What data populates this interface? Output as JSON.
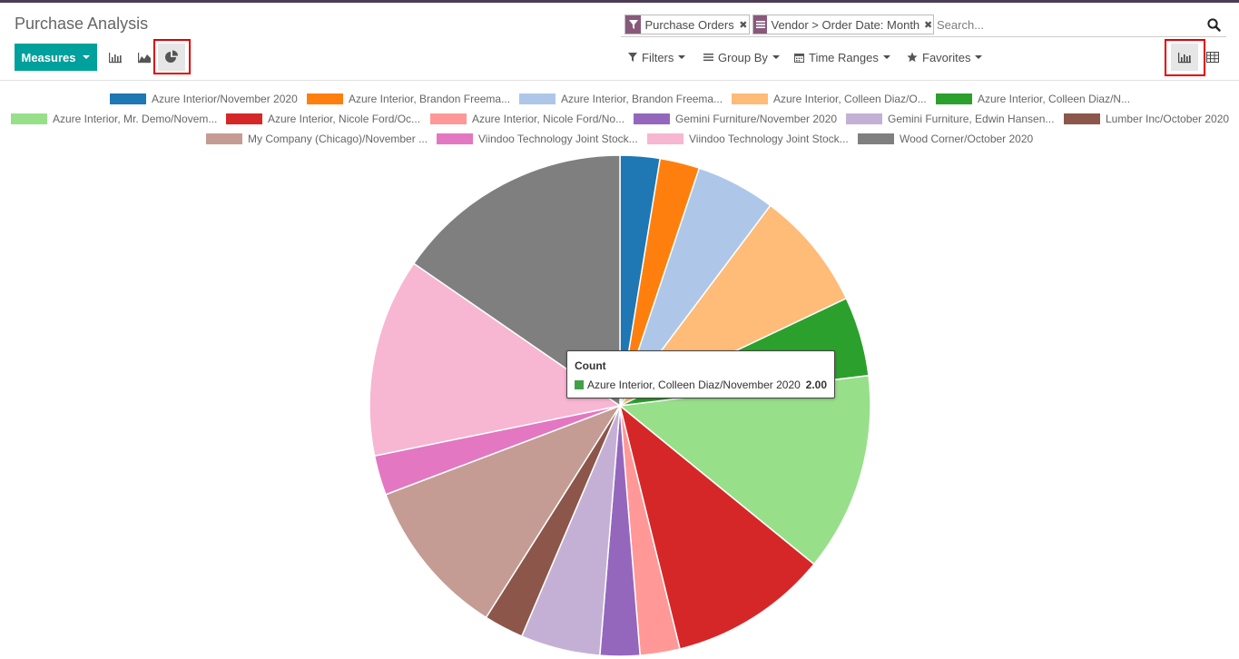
{
  "header": {
    "title": "Purchase Analysis"
  },
  "toolbar": {
    "measures_label": "Measures",
    "graph_modes": [
      "bar-chart-icon",
      "line-chart-icon",
      "pie-chart-icon"
    ],
    "active_mode": "pie"
  },
  "search": {
    "facets": [
      {
        "icon": "filter-icon",
        "label": "Purchase Orders"
      },
      {
        "icon": "groupby-icon",
        "label": "Vendor > Order Date: Month"
      }
    ],
    "placeholder": "Search..."
  },
  "filters": {
    "filters_label": "Filters",
    "groupby_label": "Group By",
    "timeranges_label": "Time Ranges",
    "favorites_label": "Favorites"
  },
  "views": [
    "graph-view-icon",
    "pivot-view-icon"
  ],
  "accent_color": "#00a09d",
  "facet_color": "#875a7b",
  "chart_data": {
    "type": "pie",
    "measure": "Count",
    "slices": [
      {
        "label": "Azure Interior/November 2020",
        "value": 1,
        "color": "#1f77b4"
      },
      {
        "label": "Azure Interior, Brandon Freema...",
        "value": 1,
        "color": "#ff7f0e"
      },
      {
        "label": "Azure Interior, Brandon Freema...",
        "value": 2,
        "color": "#aec7e8"
      },
      {
        "label": "Azure Interior, Colleen Diaz/O...",
        "value": 3,
        "color": "#ffbb78"
      },
      {
        "label": "Azure Interior, Colleen Diaz/N...",
        "value": 2,
        "color": "#2ca02c"
      },
      {
        "label": "Azure Interior, Mr. Demo/Novem...",
        "value": 5,
        "color": "#98df8a"
      },
      {
        "label": "Azure Interior, Nicole Ford/Oc...",
        "value": 4,
        "color": "#d62728"
      },
      {
        "label": "Azure Interior, Nicole Ford/No...",
        "value": 1,
        "color": "#ff9896"
      },
      {
        "label": "Gemini Furniture/November 2020",
        "value": 1,
        "color": "#9467bd"
      },
      {
        "label": "Gemini Furniture, Edwin Hansen...",
        "value": 2,
        "color": "#c5b0d5"
      },
      {
        "label": "Lumber Inc/October 2020",
        "value": 1,
        "color": "#8c564b"
      },
      {
        "label": "My Company (Chicago)/November ...",
        "value": 4,
        "color": "#c49c94"
      },
      {
        "label": "Viindoo Technology Joint Stock...",
        "value": 1,
        "color": "#e377c2"
      },
      {
        "label": "Viindoo Technology Joint Stock...",
        "value": 5,
        "color": "#f7b6d2"
      },
      {
        "label": "Wood Corner/October 2020",
        "value": 6,
        "color": "#7f7f7f"
      }
    ],
    "legend_placement": "top"
  },
  "tooltip": {
    "title": "Count",
    "label": "Azure Interior, Colleen Diaz/November 2020",
    "value": "2.00",
    "color": "#43a047"
  }
}
